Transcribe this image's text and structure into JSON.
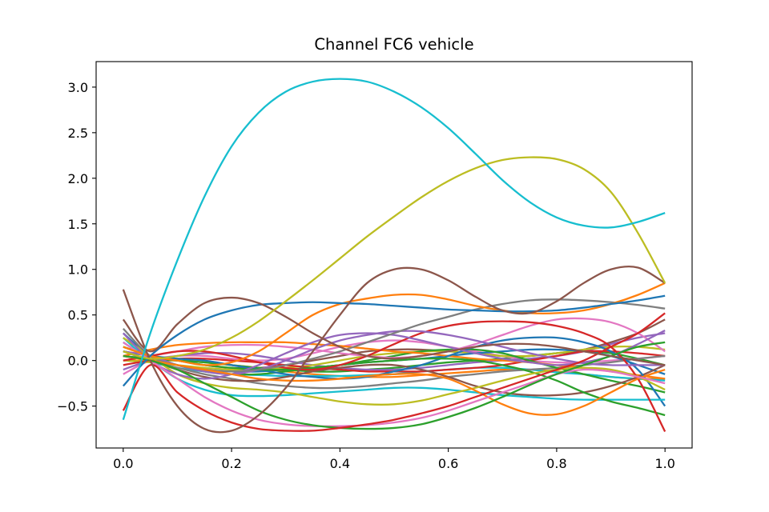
{
  "chart_data": {
    "type": "line",
    "title": "Channel FC6 vehicle",
    "xlabel": "",
    "ylabel": "",
    "xlim": [
      -0.05,
      1.05
    ],
    "ylim": [
      -0.96,
      3.28
    ],
    "grid": false,
    "legend": "none",
    "x_ticks": [
      0.0,
      0.2,
      0.4,
      0.6,
      0.8,
      1.0
    ],
    "x_tick_labels": [
      "0.0",
      "0.2",
      "0.4",
      "0.6",
      "0.8",
      "1.0"
    ],
    "y_ticks": [
      -0.5,
      0.0,
      0.5,
      1.0,
      1.5,
      2.0,
      2.5,
      3.0
    ],
    "y_tick_labels": [
      "−0.5",
      "0.0",
      "0.5",
      "1.0",
      "1.5",
      "2.0",
      "2.5",
      "3.0"
    ],
    "x": [
      0,
      0.05,
      0.1,
      0.15,
      0.2,
      0.25,
      0.3,
      0.35,
      0.4,
      0.45,
      0.5,
      0.55,
      0.6,
      0.65,
      0.7,
      0.75,
      0.8,
      0.85,
      0.9,
      0.95,
      1.0
    ],
    "series": [
      {
        "color": "#17becf",
        "values": [
          -0.65,
          0.3,
          1.1,
          1.8,
          2.35,
          2.72,
          2.95,
          3.06,
          3.09,
          3.06,
          2.95,
          2.78,
          2.55,
          2.27,
          1.98,
          1.74,
          1.57,
          1.48,
          1.46,
          1.52,
          1.62
        ]
      },
      {
        "color": "#bcbd22",
        "values": [
          0.1,
          0.02,
          0.05,
          0.12,
          0.25,
          0.43,
          0.65,
          0.88,
          1.12,
          1.36,
          1.58,
          1.79,
          1.97,
          2.11,
          2.2,
          2.23,
          2.21,
          2.1,
          1.85,
          1.4,
          0.85
        ]
      },
      {
        "color": "#8c564b",
        "values": [
          0.78,
          0.0,
          -0.5,
          -0.75,
          -0.77,
          -0.6,
          -0.3,
          0.1,
          0.5,
          0.85,
          1.0,
          1.0,
          0.88,
          0.7,
          0.55,
          0.52,
          0.65,
          0.85,
          1.0,
          1.02,
          0.85
        ]
      },
      {
        "color": "#8c564b",
        "values": [
          0.45,
          0.1,
          0.4,
          0.63,
          0.69,
          0.63,
          0.48,
          0.3,
          0.15,
          0.05,
          0.02,
          0.05,
          0.1,
          0.15,
          0.18,
          0.18,
          0.15,
          0.1,
          0.05,
          0.0,
          -0.05
        ]
      },
      {
        "color": "#1f77b4",
        "values": [
          -0.28,
          0.05,
          0.28,
          0.45,
          0.55,
          0.61,
          0.63,
          0.64,
          0.63,
          0.62,
          0.6,
          0.58,
          0.56,
          0.55,
          0.54,
          0.54,
          0.55,
          0.58,
          0.62,
          0.66,
          0.71
        ]
      },
      {
        "color": "#ff7f0e",
        "values": [
          0.15,
          0.05,
          0.0,
          -0.05,
          -0.02,
          0.1,
          0.3,
          0.5,
          0.62,
          0.68,
          0.72,
          0.72,
          0.67,
          0.6,
          0.55,
          0.52,
          0.52,
          0.55,
          0.62,
          0.72,
          0.85
        ]
      },
      {
        "color": "#d62728",
        "values": [
          -0.55,
          -0.05,
          -0.35,
          -0.55,
          -0.68,
          -0.75,
          -0.77,
          -0.77,
          -0.74,
          -0.7,
          -0.65,
          -0.58,
          -0.5,
          -0.4,
          -0.3,
          -0.2,
          -0.1,
          0.0,
          0.15,
          0.3,
          0.52
        ]
      },
      {
        "color": "#2ca02c",
        "values": [
          0.05,
          0.0,
          -0.1,
          -0.25,
          -0.4,
          -0.55,
          -0.65,
          -0.71,
          -0.74,
          -0.75,
          -0.74,
          -0.7,
          -0.62,
          -0.52,
          -0.4,
          -0.27,
          -0.15,
          -0.05,
          0.05,
          0.15,
          0.2
        ]
      },
      {
        "color": "#e377c2",
        "values": [
          0.2,
          0.0,
          -0.2,
          -0.4,
          -0.55,
          -0.65,
          -0.7,
          -0.72,
          -0.72,
          -0.71,
          -0.68,
          -0.63,
          -0.55,
          -0.45,
          -0.35,
          -0.25,
          -0.15,
          -0.1,
          -0.12,
          -0.18,
          -0.25
        ]
      },
      {
        "color": "#ff7f0e",
        "values": [
          0.05,
          0.0,
          -0.05,
          -0.1,
          -0.15,
          -0.2,
          -0.22,
          -0.22,
          -0.2,
          -0.17,
          -0.15,
          -0.15,
          -0.2,
          -0.33,
          -0.48,
          -0.58,
          -0.59,
          -0.5,
          -0.35,
          -0.2,
          -0.1
        ]
      },
      {
        "color": "#7f7f7f",
        "values": [
          0.35,
          0.05,
          -0.05,
          -0.1,
          -0.12,
          -0.1,
          -0.05,
          0.02,
          0.1,
          0.2,
          0.3,
          0.4,
          0.48,
          0.56,
          0.62,
          0.66,
          0.67,
          0.66,
          0.64,
          0.61,
          0.57
        ]
      },
      {
        "color": "#9467bd",
        "values": [
          0.3,
          0.0,
          -0.15,
          -0.2,
          -0.15,
          -0.05,
          0.08,
          0.2,
          0.28,
          0.3,
          0.28,
          0.22,
          0.15,
          0.08,
          0.02,
          -0.02,
          -0.05,
          -0.02,
          0.05,
          0.18,
          0.33
        ]
      },
      {
        "color": "#9467bd",
        "values": [
          0.1,
          0.05,
          -0.05,
          -0.12,
          -0.15,
          -0.1,
          0.0,
          0.12,
          0.22,
          0.28,
          0.32,
          0.32,
          0.28,
          0.22,
          0.15,
          0.08,
          0.02,
          -0.03,
          -0.05,
          -0.05,
          -0.05
        ]
      },
      {
        "color": "#bcbd22",
        "values": [
          0.25,
          0.05,
          -0.15,
          -0.25,
          -0.3,
          -0.32,
          -0.35,
          -0.4,
          -0.45,
          -0.48,
          -0.48,
          -0.44,
          -0.37,
          -0.3,
          -0.22,
          -0.15,
          -0.1,
          -0.08,
          -0.1,
          -0.18,
          -0.32
        ]
      },
      {
        "color": "#d62728",
        "values": [
          0.0,
          0.05,
          0.1,
          0.1,
          0.05,
          -0.02,
          -0.08,
          -0.1,
          -0.05,
          0.05,
          0.18,
          0.3,
          0.38,
          0.42,
          0.43,
          0.42,
          0.38,
          0.3,
          0.15,
          -0.2,
          -0.78
        ]
      },
      {
        "color": "#e377c2",
        "values": [
          0.0,
          0.05,
          0.1,
          0.15,
          0.17,
          0.17,
          0.15,
          0.12,
          0.08,
          0.05,
          0.03,
          0.05,
          0.1,
          0.18,
          0.28,
          0.38,
          0.45,
          0.46,
          0.42,
          0.3,
          0.1
        ]
      },
      {
        "color": "#2ca02c",
        "values": [
          0.1,
          0.05,
          0.0,
          -0.05,
          -0.08,
          -0.1,
          -0.1,
          -0.08,
          -0.05,
          -0.02,
          0.0,
          0.02,
          0.02,
          0.0,
          -0.05,
          -0.12,
          -0.22,
          -0.35,
          -0.45,
          -0.52,
          -0.6
        ]
      },
      {
        "color": "#17becf",
        "values": [
          0.2,
          0.0,
          -0.2,
          -0.32,
          -0.38,
          -0.39,
          -0.38,
          -0.36,
          -0.34,
          -0.32,
          -0.3,
          -0.3,
          -0.32,
          -0.35,
          -0.38,
          -0.4,
          -0.42,
          -0.43,
          -0.43,
          -0.43,
          -0.43
        ]
      },
      {
        "color": "#1f77b4",
        "values": [
          0.1,
          0.05,
          0.02,
          0.0,
          -0.05,
          -0.1,
          -0.15,
          -0.18,
          -0.2,
          -0.18,
          -0.12,
          -0.05,
          0.05,
          0.15,
          0.22,
          0.25,
          0.25,
          0.2,
          0.1,
          -0.1,
          -0.5
        ]
      },
      {
        "color": "#8c564b",
        "values": [
          0.05,
          0.0,
          -0.1,
          -0.18,
          -0.22,
          -0.22,
          -0.18,
          -0.12,
          -0.08,
          -0.05,
          -0.05,
          -0.1,
          -0.18,
          -0.28,
          -0.35,
          -0.38,
          -0.38,
          -0.35,
          -0.28,
          -0.18,
          -0.05
        ]
      },
      {
        "color": "#ff7f0e",
        "values": [
          0.05,
          0.12,
          0.17,
          0.19,
          0.2,
          0.2,
          0.2,
          0.18,
          0.16,
          0.13,
          0.1,
          0.08,
          0.05,
          0.02,
          0.0,
          -0.02,
          -0.05,
          -0.08,
          -0.12,
          -0.16,
          -0.2
        ]
      },
      {
        "color": "#2ca02c",
        "values": [
          0.15,
          0.05,
          -0.05,
          -0.12,
          -0.15,
          -0.15,
          -0.12,
          -0.08,
          -0.05,
          0.0,
          0.05,
          0.1,
          0.12,
          0.12,
          0.08,
          0.0,
          -0.08,
          -0.15,
          -0.22,
          -0.28,
          -0.35
        ]
      },
      {
        "color": "#7f7f7f",
        "values": [
          0.1,
          0.0,
          -0.08,
          -0.15,
          -0.2,
          -0.25,
          -0.28,
          -0.3,
          -0.3,
          -0.28,
          -0.25,
          -0.22,
          -0.18,
          -0.15,
          -0.12,
          -0.1,
          -0.08,
          -0.05,
          -0.02,
          0.02,
          0.05
        ]
      },
      {
        "color": "#d62728",
        "values": [
          -0.05,
          0.0,
          0.02,
          0.02,
          0.0,
          -0.02,
          -0.05,
          -0.08,
          -0.1,
          -0.12,
          -0.12,
          -0.12,
          -0.1,
          -0.08,
          -0.05,
          0.0,
          0.05,
          0.1,
          0.1,
          0.08,
          0.05
        ]
      },
      {
        "color": "#1f77b4",
        "values": [
          0.3,
          0.05,
          -0.05,
          -0.1,
          -0.12,
          -0.12,
          -0.1,
          -0.08,
          -0.05,
          -0.02,
          0.0,
          0.02,
          0.05,
          0.08,
          0.1,
          0.12,
          0.12,
          0.1,
          0.05,
          -0.05,
          -0.15
        ]
      },
      {
        "color": "#bcbd22",
        "values": [
          0.0,
          -0.02,
          -0.05,
          -0.08,
          -0.1,
          -0.1,
          -0.08,
          -0.05,
          0.0,
          0.05,
          0.08,
          0.1,
          0.1,
          0.08,
          0.05,
          0.05,
          0.08,
          0.12,
          0.15,
          0.15,
          0.12
        ]
      },
      {
        "color": "#9467bd",
        "values": [
          -0.1,
          0.0,
          0.05,
          0.08,
          0.08,
          0.05,
          0.0,
          -0.05,
          -0.08,
          -0.1,
          -0.1,
          -0.08,
          -0.05,
          -0.02,
          0.0,
          0.02,
          0.05,
          0.1,
          0.18,
          0.25,
          0.3
        ]
      },
      {
        "color": "#17becf",
        "values": [
          0.25,
          0.0,
          -0.08,
          -0.12,
          -0.15,
          -0.16,
          -0.17,
          -0.17,
          -0.17,
          -0.16,
          -0.15,
          -0.12,
          -0.1,
          -0.08,
          -0.08,
          -0.1,
          -0.13,
          -0.15,
          -0.18,
          -0.2,
          -0.22
        ]
      },
      {
        "color": "#e377c2",
        "values": [
          -0.15,
          0.0,
          0.05,
          0.05,
          0.02,
          0.0,
          0.02,
          0.08,
          0.15,
          0.2,
          0.22,
          0.2,
          0.15,
          0.1,
          0.05,
          0.0,
          -0.02,
          -0.02,
          0.0,
          0.02,
          0.05
        ]
      },
      {
        "color": "#2ca02c",
        "values": [
          0.05,
          0.02,
          0.0,
          -0.02,
          -0.05,
          -0.08,
          -0.1,
          -0.12,
          -0.12,
          -0.1,
          -0.08,
          -0.05,
          -0.02,
          0.0,
          0.02,
          0.05,
          0.08,
          0.1,
          0.08,
          0.02,
          -0.05
        ]
      },
      {
        "color": "#ff7f0e",
        "values": [
          0.0,
          0.0,
          0.0,
          -0.02,
          -0.05,
          -0.08,
          -0.12,
          -0.15,
          -0.17,
          -0.18,
          -0.18,
          -0.16,
          -0.14,
          -0.12,
          -0.1,
          -0.1,
          -0.12,
          -0.15,
          -0.18,
          -0.2,
          -0.2
        ]
      },
      {
        "color": "#8c564b",
        "values": [
          0.15,
          0.05,
          0.0,
          -0.05,
          -0.08,
          -0.08,
          -0.05,
          0.0,
          0.05,
          0.1,
          0.12,
          0.12,
          0.1,
          0.08,
          0.05,
          0.05,
          0.08,
          0.12,
          0.2,
          0.3,
          0.45
        ]
      }
    ]
  }
}
